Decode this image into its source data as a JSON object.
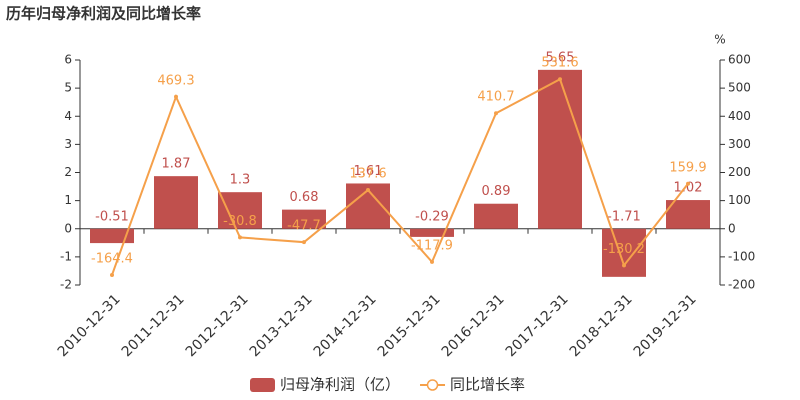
{
  "chart_data": {
    "type": "bar",
    "title": "历年归母净利润及同比增长率",
    "y2_label": "%",
    "categories": [
      "2010-12-31",
      "2011-12-31",
      "2012-12-31",
      "2013-12-31",
      "2014-12-31",
      "2015-12-31",
      "2016-12-31",
      "2017-12-31",
      "2018-12-31",
      "2019-12-31"
    ],
    "series": [
      {
        "name": "归母净利润（亿）",
        "type": "bar",
        "color": "#c0504d",
        "values": [
          -0.51,
          1.87,
          1.3,
          0.68,
          1.61,
          -0.29,
          0.89,
          5.65,
          -1.71,
          1.02
        ]
      },
      {
        "name": "同比增长率",
        "type": "line",
        "axis": "y2",
        "color": "#f5a04a",
        "values": [
          -164.4,
          469.3,
          -30.8,
          -47.7,
          137.6,
          -117.9,
          410.7,
          531.6,
          -130.2,
          159.9
        ]
      }
    ],
    "ylim": [
      -2,
      6
    ],
    "yticks": [
      -2,
      -1,
      0,
      1,
      2,
      3,
      4,
      5,
      6
    ],
    "y2lim": [
      -200,
      600
    ],
    "y2ticks": [
      -200,
      -100,
      0,
      100,
      200,
      300,
      400,
      500,
      600
    ],
    "grid": false
  }
}
